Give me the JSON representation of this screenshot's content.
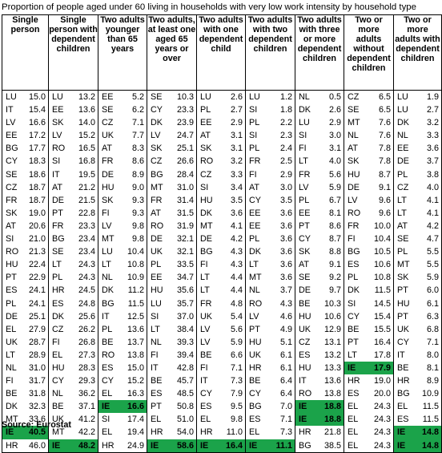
{
  "title": "Proportion of people aged under 60 living in households with very low work intensity by household type",
  "source": "Source: Eurostat",
  "highlight_color": "#1ba34a",
  "columns": [
    {
      "header": "Single person",
      "rows": [
        {
          "c": "LU",
          "v": "15.0"
        },
        {
          "c": "IT",
          "v": "15.4"
        },
        {
          "c": "LV",
          "v": "16.6"
        },
        {
          "c": "EE",
          "v": "17.2"
        },
        {
          "c": "BG",
          "v": "17.7"
        },
        {
          "c": "CY",
          "v": "18.3"
        },
        {
          "c": "SE",
          "v": "18.6"
        },
        {
          "c": "CZ",
          "v": "18.7"
        },
        {
          "c": "FR",
          "v": "18.7"
        },
        {
          "c": "SK",
          "v": "19.0"
        },
        {
          "c": "AT",
          "v": "20.6"
        },
        {
          "c": "SI",
          "v": "21.0"
        },
        {
          "c": "RO",
          "v": "21.3"
        },
        {
          "c": "HU",
          "v": "22.4"
        },
        {
          "c": "PT",
          "v": "22.9"
        },
        {
          "c": "ES",
          "v": "24.1"
        },
        {
          "c": "PL",
          "v": "24.1"
        },
        {
          "c": "DE",
          "v": "25.1"
        },
        {
          "c": "EL",
          "v": "27.9"
        },
        {
          "c": "UK",
          "v": "28.7"
        },
        {
          "c": "LT",
          "v": "28.9"
        },
        {
          "c": "NL",
          "v": "31.0"
        },
        {
          "c": "FI",
          "v": "31.7"
        },
        {
          "c": "BE",
          "v": "31.8"
        },
        {
          "c": "DK",
          "v": "32.3"
        },
        {
          "c": "MT",
          "v": "33.6"
        },
        {
          "c": "IE",
          "v": "40.5",
          "hl": true
        },
        {
          "c": "HR",
          "v": "46.0"
        }
      ]
    },
    {
      "header": "Single person with dependent children",
      "rows": [
        {
          "c": "LU",
          "v": "13.2"
        },
        {
          "c": "EE",
          "v": "13.6"
        },
        {
          "c": "SK",
          "v": "14.0"
        },
        {
          "c": "LV",
          "v": "15.2"
        },
        {
          "c": "RO",
          "v": "16.5"
        },
        {
          "c": "SI",
          "v": "16.8"
        },
        {
          "c": "IT",
          "v": "19.5"
        },
        {
          "c": "AT",
          "v": "21.2"
        },
        {
          "c": "DE",
          "v": "21.5"
        },
        {
          "c": "PT",
          "v": "22.8"
        },
        {
          "c": "FR",
          "v": "23.3"
        },
        {
          "c": "BG",
          "v": "23.4"
        },
        {
          "c": "SE",
          "v": "23.4"
        },
        {
          "c": "LT",
          "v": "24.3"
        },
        {
          "c": "PL",
          "v": "24.3"
        },
        {
          "c": "HR",
          "v": "24.5"
        },
        {
          "c": "ES",
          "v": "24.8"
        },
        {
          "c": "DK",
          "v": "25.6"
        },
        {
          "c": "CZ",
          "v": "26.2"
        },
        {
          "c": "FI",
          "v": "26.8"
        },
        {
          "c": "EL",
          "v": "27.3"
        },
        {
          "c": "HU",
          "v": "28.3"
        },
        {
          "c": "CY",
          "v": "29.3"
        },
        {
          "c": "NL",
          "v": "36.2"
        },
        {
          "c": "BE",
          "v": "37.1"
        },
        {
          "c": "UK",
          "v": "41.2"
        },
        {
          "c": "MT",
          "v": "42.2"
        },
        {
          "c": "IE",
          "v": "48.2",
          "hl": true
        }
      ]
    },
    {
      "header": "Two adults younger than 65 years",
      "rows": [
        {
          "c": "EE",
          "v": "5.2"
        },
        {
          "c": "SE",
          "v": "6.2"
        },
        {
          "c": "CZ",
          "v": "7.1"
        },
        {
          "c": "UK",
          "v": "7.7"
        },
        {
          "c": "AT",
          "v": "8.3"
        },
        {
          "c": "FR",
          "v": "8.6"
        },
        {
          "c": "DE",
          "v": "8.9"
        },
        {
          "c": "HU",
          "v": "9.0"
        },
        {
          "c": "SK",
          "v": "9.3"
        },
        {
          "c": "FI",
          "v": "9.3"
        },
        {
          "c": "LV",
          "v": "9.8"
        },
        {
          "c": "MT",
          "v": "9.8"
        },
        {
          "c": "LU",
          "v": "10.4"
        },
        {
          "c": "LT",
          "v": "10.8"
        },
        {
          "c": "NL",
          "v": "10.9"
        },
        {
          "c": "DK",
          "v": "11.2"
        },
        {
          "c": "BG",
          "v": "11.5"
        },
        {
          "c": "IT",
          "v": "12.5"
        },
        {
          "c": "PL",
          "v": "13.6"
        },
        {
          "c": "BE",
          "v": "13.7"
        },
        {
          "c": "RO",
          "v": "13.8"
        },
        {
          "c": "ES",
          "v": "15.0"
        },
        {
          "c": "CY",
          "v": "15.2"
        },
        {
          "c": "EL",
          "v": "16.3"
        },
        {
          "c": "IE",
          "v": "16.6",
          "hl": true
        },
        {
          "c": "SI",
          "v": "17.4"
        },
        {
          "c": "EL",
          "v": "19.4"
        },
        {
          "c": "HR",
          "v": "24.9"
        }
      ]
    },
    {
      "header": "Two adults, at least one aged 65 years or over",
      "rows": [
        {
          "c": "SE",
          "v": "10.3"
        },
        {
          "c": "CY",
          "v": "23.3"
        },
        {
          "c": "DK",
          "v": "23.9"
        },
        {
          "c": "LV",
          "v": "24.7"
        },
        {
          "c": "SK",
          "v": "25.1"
        },
        {
          "c": "CZ",
          "v": "26.6"
        },
        {
          "c": "BG",
          "v": "28.4"
        },
        {
          "c": "MT",
          "v": "31.0"
        },
        {
          "c": "FR",
          "v": "31.4"
        },
        {
          "c": "AT",
          "v": "31.5"
        },
        {
          "c": "RO",
          "v": "31.9"
        },
        {
          "c": "DE",
          "v": "32.1"
        },
        {
          "c": "UK",
          "v": "32.1"
        },
        {
          "c": "PL",
          "v": "33.5"
        },
        {
          "c": "EE",
          "v": "34.7"
        },
        {
          "c": "HU",
          "v": "35.6"
        },
        {
          "c": "LU",
          "v": "35.7"
        },
        {
          "c": "SI",
          "v": "37.0"
        },
        {
          "c": "LT",
          "v": "38.4"
        },
        {
          "c": "NL",
          "v": "39.3"
        },
        {
          "c": "FI",
          "v": "39.4"
        },
        {
          "c": "IT",
          "v": "42.8"
        },
        {
          "c": "BE",
          "v": "45.7"
        },
        {
          "c": "ES",
          "v": "48.5"
        },
        {
          "c": "PT",
          "v": "50.8"
        },
        {
          "c": "EL",
          "v": "51.0"
        },
        {
          "c": "HR",
          "v": "54.0"
        },
        {
          "c": "IE",
          "v": "58.6",
          "hl": true
        }
      ]
    },
    {
      "header": "Two adults with one dependent child",
      "rows": [
        {
          "c": "LU",
          "v": "2.6"
        },
        {
          "c": "PL",
          "v": "2.7"
        },
        {
          "c": "EE",
          "v": "2.9"
        },
        {
          "c": "AT",
          "v": "3.1"
        },
        {
          "c": "SK",
          "v": "3.1"
        },
        {
          "c": "RO",
          "v": "3.2"
        },
        {
          "c": "CZ",
          "v": "3.3"
        },
        {
          "c": "SI",
          "v": "3.4"
        },
        {
          "c": "HU",
          "v": "3.5"
        },
        {
          "c": "DK",
          "v": "3.6"
        },
        {
          "c": "MT",
          "v": "4.1"
        },
        {
          "c": "DE",
          "v": "4.2"
        },
        {
          "c": "BG",
          "v": "4.3"
        },
        {
          "c": "FI",
          "v": "4.3"
        },
        {
          "c": "LT",
          "v": "4.4"
        },
        {
          "c": "LT",
          "v": "4.4"
        },
        {
          "c": "FR",
          "v": "4.8"
        },
        {
          "c": "UK",
          "v": "5.4"
        },
        {
          "c": "LV",
          "v": "5.6"
        },
        {
          "c": "LV",
          "v": "5.9"
        },
        {
          "c": "BE",
          "v": "6.6"
        },
        {
          "c": "FI",
          "v": "7.1"
        },
        {
          "c": "IT",
          "v": "7.3"
        },
        {
          "c": "CY",
          "v": "7.9"
        },
        {
          "c": "ES",
          "v": "9.5"
        },
        {
          "c": "EL",
          "v": "9.8"
        },
        {
          "c": "HR",
          "v": "11.0"
        },
        {
          "c": "IE",
          "v": "16.4",
          "hl": true
        }
      ]
    },
    {
      "header": "Two adults with two dependent children",
      "rows": [
        {
          "c": "LU",
          "v": "1.2"
        },
        {
          "c": "SI",
          "v": "1.8"
        },
        {
          "c": "PL",
          "v": "2.2"
        },
        {
          "c": "SI",
          "v": "2.3"
        },
        {
          "c": "PL",
          "v": "2.4"
        },
        {
          "c": "FR",
          "v": "2.5"
        },
        {
          "c": "FI",
          "v": "2.9"
        },
        {
          "c": "AT",
          "v": "3.0"
        },
        {
          "c": "CY",
          "v": "3.5"
        },
        {
          "c": "EE",
          "v": "3.6"
        },
        {
          "c": "EE",
          "v": "3.6"
        },
        {
          "c": "PL",
          "v": "3.6"
        },
        {
          "c": "DK",
          "v": "3.6"
        },
        {
          "c": "LT",
          "v": "3.6"
        },
        {
          "c": "MT",
          "v": "3.6"
        },
        {
          "c": "NL",
          "v": "3.7"
        },
        {
          "c": "RO",
          "v": "4.3"
        },
        {
          "c": "LV",
          "v": "4.6"
        },
        {
          "c": "PT",
          "v": "4.9"
        },
        {
          "c": "HU",
          "v": "5.1"
        },
        {
          "c": "UK",
          "v": "6.1"
        },
        {
          "c": "HR",
          "v": "6.1"
        },
        {
          "c": "BE",
          "v": "6.4"
        },
        {
          "c": "CY",
          "v": "6.4"
        },
        {
          "c": "BG",
          "v": "7.0"
        },
        {
          "c": "ES",
          "v": "7.1"
        },
        {
          "c": "EL",
          "v": "7.3"
        },
        {
          "c": "IE",
          "v": "11.1",
          "hl": true
        }
      ]
    },
    {
      "header": "Two adults with three or more dependent children",
      "rows": [
        {
          "c": "NL",
          "v": "0.5"
        },
        {
          "c": "DK",
          "v": "2.6"
        },
        {
          "c": "LU",
          "v": "2.9"
        },
        {
          "c": "SI",
          "v": "3.0"
        },
        {
          "c": "FI",
          "v": "3.1"
        },
        {
          "c": "LT",
          "v": "4.0"
        },
        {
          "c": "FR",
          "v": "5.6"
        },
        {
          "c": "LV",
          "v": "5.9"
        },
        {
          "c": "PL",
          "v": "6.7"
        },
        {
          "c": "EE",
          "v": "8.1"
        },
        {
          "c": "PT",
          "v": "8.6"
        },
        {
          "c": "CY",
          "v": "8.7"
        },
        {
          "c": "SK",
          "v": "8.8"
        },
        {
          "c": "AT",
          "v": "9.1"
        },
        {
          "c": "SE",
          "v": "9.2"
        },
        {
          "c": "DE",
          "v": "9.7"
        },
        {
          "c": "BE",
          "v": "10.3"
        },
        {
          "c": "HU",
          "v": "10.6"
        },
        {
          "c": "UK",
          "v": "12.9"
        },
        {
          "c": "CZ",
          "v": "13.1"
        },
        {
          "c": "ES",
          "v": "13.2"
        },
        {
          "c": "HU",
          "v": "13.3"
        },
        {
          "c": "IT",
          "v": "13.6"
        },
        {
          "c": "RO",
          "v": "13.8"
        },
        {
          "c": "IE",
          "v": "18.8",
          "hl": true
        },
        {
          "c": "IE",
          "v": "18.8",
          "hl": true
        },
        {
          "c": "HR",
          "v": "21.8"
        },
        {
          "c": "BG",
          "v": "38.5"
        }
      ]
    },
    {
      "header": "Two or more adults without dependent children",
      "rows": [
        {
          "c": "CZ",
          "v": "6.5"
        },
        {
          "c": "SE",
          "v": "6.5"
        },
        {
          "c": "MT",
          "v": "7.6"
        },
        {
          "c": "NL",
          "v": "7.6"
        },
        {
          "c": "AT",
          "v": "7.8"
        },
        {
          "c": "SK",
          "v": "7.8"
        },
        {
          "c": "HU",
          "v": "8.7"
        },
        {
          "c": "DE",
          "v": "9.1"
        },
        {
          "c": "LV",
          "v": "9.6"
        },
        {
          "c": "RO",
          "v": "9.6"
        },
        {
          "c": "FR",
          "v": "10.0"
        },
        {
          "c": "FI",
          "v": "10.4"
        },
        {
          "c": "BG",
          "v": "10.5"
        },
        {
          "c": "ES",
          "v": "10.6"
        },
        {
          "c": "PL",
          "v": "10.8"
        },
        {
          "c": "DK",
          "v": "11.5"
        },
        {
          "c": "SI",
          "v": "14.5"
        },
        {
          "c": "CY",
          "v": "15.4"
        },
        {
          "c": "BE",
          "v": "15.5"
        },
        {
          "c": "PT",
          "v": "16.4"
        },
        {
          "c": "LT",
          "v": "17.8"
        },
        {
          "c": "IE",
          "v": "17.9",
          "hl": true
        },
        {
          "c": "HR",
          "v": "19.0"
        },
        {
          "c": "ES",
          "v": "20.0"
        },
        {
          "c": "EL",
          "v": "24.3"
        },
        {
          "c": "EL",
          "v": "24.3"
        },
        {
          "c": "EL",
          "v": "24.3"
        },
        {
          "c": "EL",
          "v": "24.3"
        }
      ]
    },
    {
      "header": "Two or more adults with dependent children",
      "rows": [
        {
          "c": "LU",
          "v": "1.9"
        },
        {
          "c": "LU",
          "v": "2.7"
        },
        {
          "c": "DK",
          "v": "3.2"
        },
        {
          "c": "NL",
          "v": "3.3"
        },
        {
          "c": "EE",
          "v": "3.6"
        },
        {
          "c": "DE",
          "v": "3.7"
        },
        {
          "c": "PL",
          "v": "3.8"
        },
        {
          "c": "CZ",
          "v": "4.0"
        },
        {
          "c": "LT",
          "v": "4.1"
        },
        {
          "c": "LT",
          "v": "4.1"
        },
        {
          "c": "AT",
          "v": "4.2"
        },
        {
          "c": "SE",
          "v": "4.7"
        },
        {
          "c": "PL",
          "v": "5.5"
        },
        {
          "c": "MT",
          "v": "5.5"
        },
        {
          "c": "SK",
          "v": "5.9"
        },
        {
          "c": "PT",
          "v": "6.0"
        },
        {
          "c": "HU",
          "v": "6.1"
        },
        {
          "c": "PT",
          "v": "6.3"
        },
        {
          "c": "UK",
          "v": "6.8"
        },
        {
          "c": "CY",
          "v": "7.1"
        },
        {
          "c": "IT",
          "v": "8.0"
        },
        {
          "c": "BE",
          "v": "8.1"
        },
        {
          "c": "HR",
          "v": "8.9"
        },
        {
          "c": "BG",
          "v": "10.9"
        },
        {
          "c": "EL",
          "v": "11.5"
        },
        {
          "c": "ES",
          "v": "11.5"
        },
        {
          "c": "IE",
          "v": "14.8",
          "hl": true
        },
        {
          "c": "IE",
          "v": "14.8",
          "hl": true
        }
      ]
    }
  ]
}
